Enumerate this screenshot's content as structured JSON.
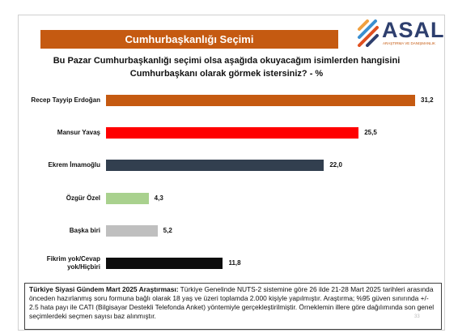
{
  "header": {
    "title": "Cumhurbaşkanlığı Seçimi"
  },
  "logo": {
    "name": "ASAL",
    "tagline": "ARAŞTIRMA VE DANIŞMANLIK"
  },
  "chart_data": {
    "type": "bar",
    "orientation": "horizontal",
    "title": "Bu Pazar Cumhurbaşkanlığı seçimi olsa aşağıda okuyacağım isimlerden hangisini Cumhurbaşkanı olarak görmek istersiniz? - %",
    "categories": [
      "Recep Tayyip Erdoğan",
      "Mansur Yavaş",
      "Ekrem İmamoğlu",
      "Özgür Özel",
      "Başka biri",
      "Fikrim yok/Cevap yok/Hiçbiri"
    ],
    "values": [
      31.2,
      25.5,
      22.0,
      4.3,
      5.2,
      11.8
    ],
    "value_labels": [
      "31,2",
      "25,5",
      "22,0",
      "4,3",
      "5,2",
      "11,8"
    ],
    "colors": [
      "#c55a11",
      "#ff0000",
      "#323f4f",
      "#a9d18e",
      "#bfbfbf",
      "#0d0d0d"
    ]
  },
  "footer": {
    "lead": "Türkiye Siyasi Gündem Mart 2025 Araştırması:",
    "text": "Türkiye Genelinde NUTS-2 sistemine göre 26 ilde 21-28 Mart 2025 tarihleri arasında önceden hazırlanmış soru formuna bağlı olarak 18 yaş ve üzeri toplamda 2.000 kişiyle yapılmıştır. Araştırma; %95 güven sınırında +/- 2.5 hata payı ile CATI (Bilgisayar Destekli Telefonda Anket) yöntemiyle gerçekleştirilmiştir. Örneklemin illere göre dağılımında son genel seçimlerdeki seçmen sayısı baz alınmıştır."
  },
  "page_number": "33"
}
